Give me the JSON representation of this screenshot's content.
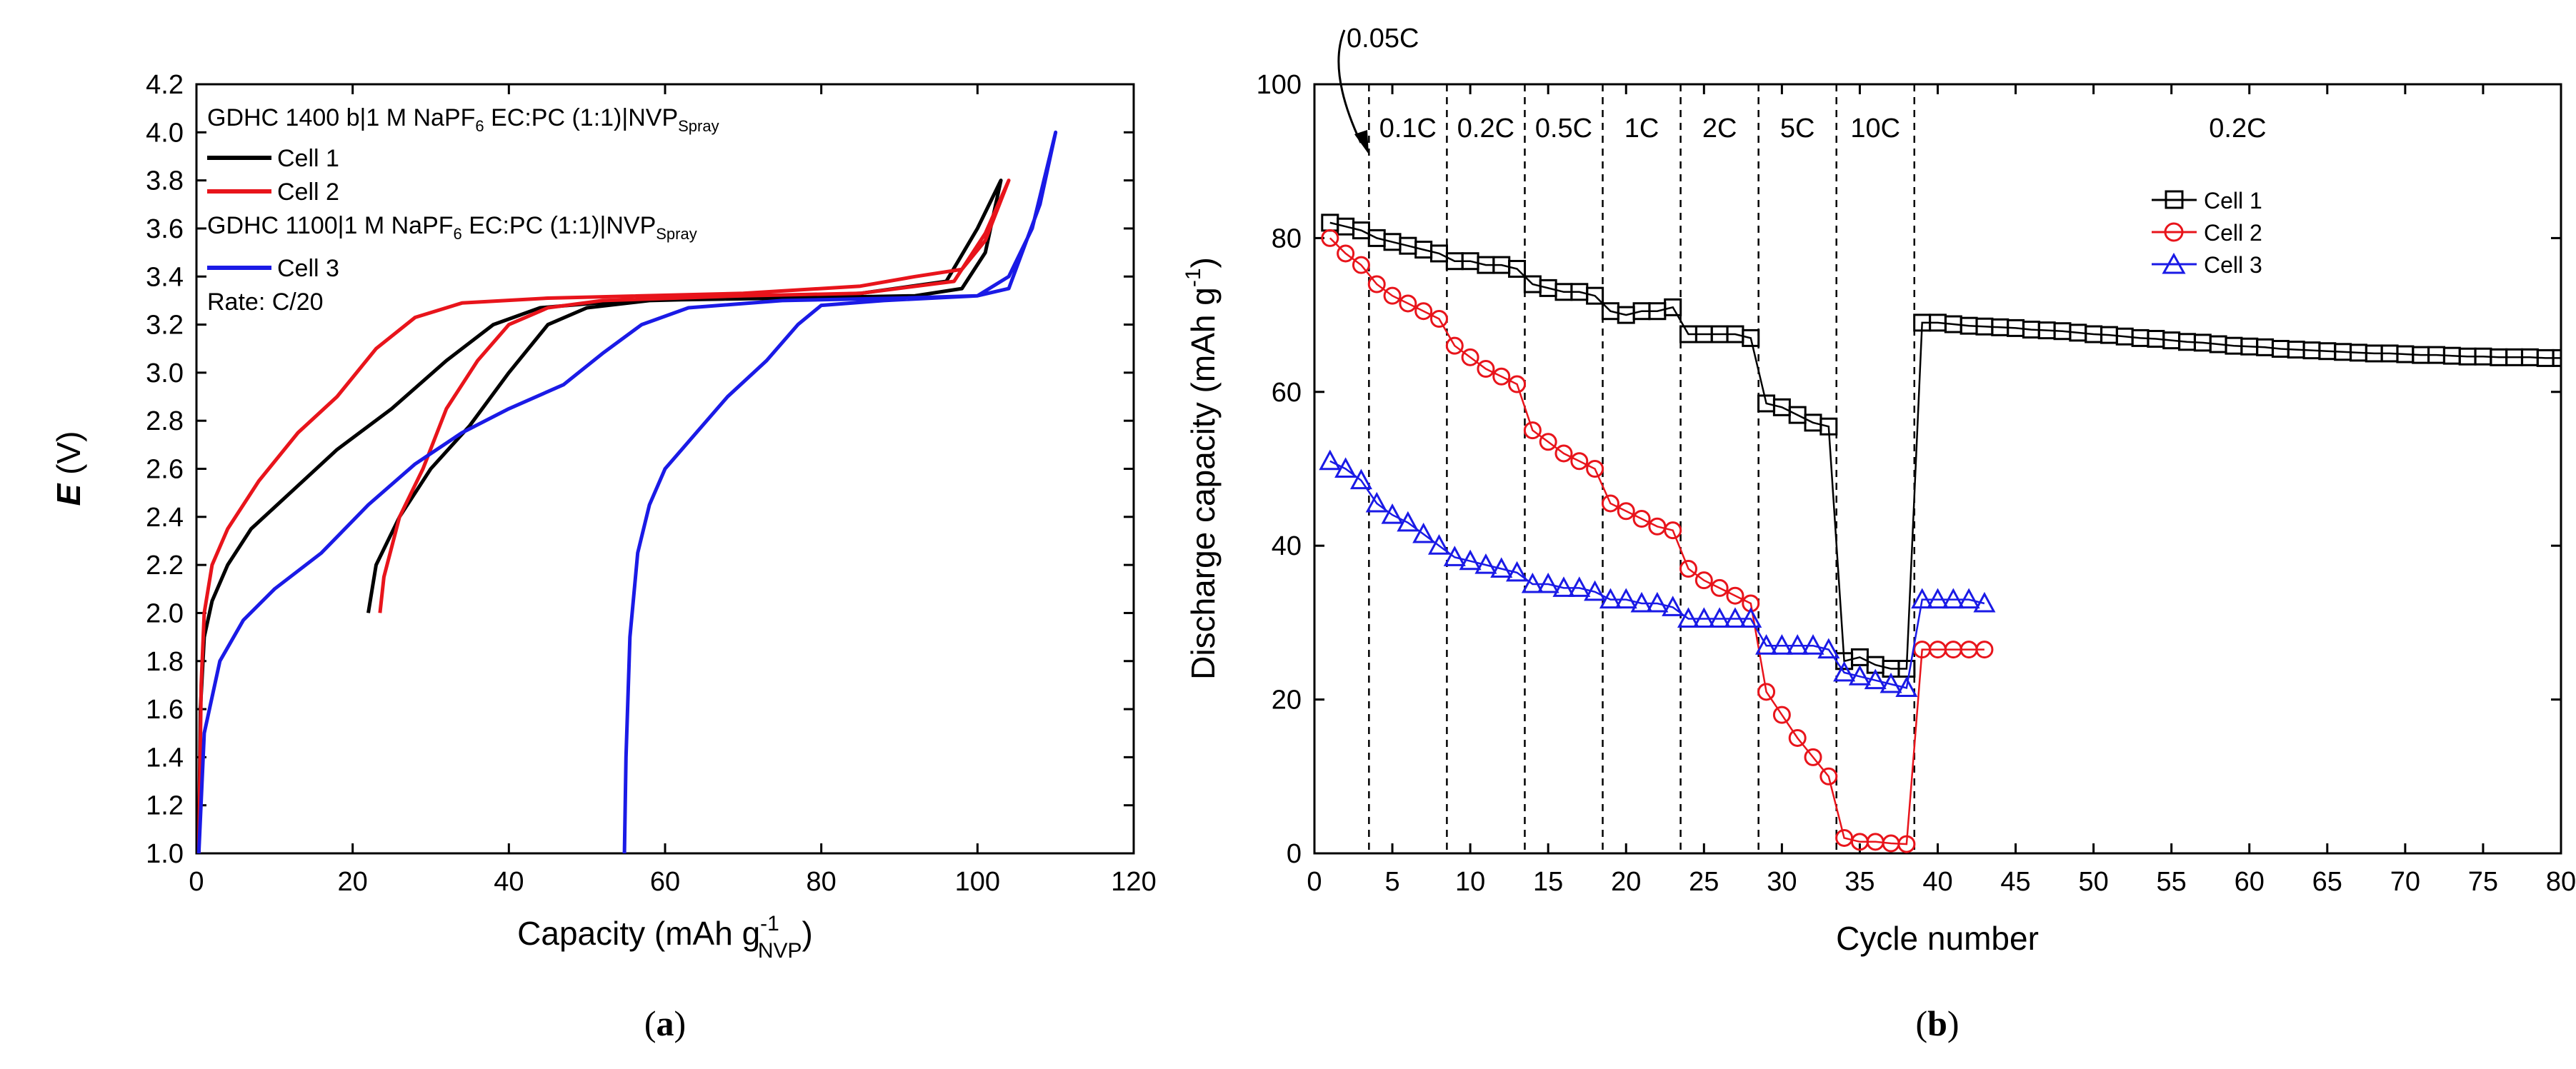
{
  "panel_a": {
    "caption_open": "(",
    "caption_letter": "a",
    "caption_close": ")",
    "ylabel": "E",
    "ylabel_unit": " (V)",
    "xlabel_main": "Capacity (mAh g",
    "xlabel_sup": "-1",
    "xlabel_sub": "NVP",
    "xlabel_close": ")",
    "legend": {
      "group1_title": "GDHC 1400 b|1 M NaPF",
      "group1_sub6": "6",
      "group1_mid": " EC:PC (1:1)|NVP",
      "group1_subspray": "Spray",
      "cell1": "Cell 1",
      "cell2": "Cell 2",
      "group2_title": "GDHC 1100|1 M NaPF",
      "group2_sub6": "6",
      "group2_mid": " EC:PC (1:1)|NVP",
      "group2_subspray": "Spray",
      "cell3": "Cell 3",
      "rate": "Rate: C/20"
    }
  },
  "panel_b": {
    "caption_open": "(",
    "caption_letter": "b",
    "caption_close": ")",
    "ylabel_main": "Discharge capacity (mAh g",
    "ylabel_sup": "-1",
    "ylabel_close": ")",
    "xlabel": "Cycle number",
    "annotation": "0.05C",
    "rate_labels": [
      "0.1C",
      "0.2C",
      "0.5C",
      "1C",
      "2C",
      "5C",
      "10C",
      "0.2C"
    ],
    "legend": [
      "Cell 1",
      "Cell 2",
      "Cell 3"
    ]
  },
  "chart_data": [
    {
      "type": "line",
      "xlim": [
        0,
        120
      ],
      "ylim": [
        1.0,
        4.2
      ],
      "xticks": [
        0,
        20,
        40,
        60,
        80,
        100,
        120
      ],
      "yticks": [
        "1.0",
        "1.2",
        "1.4",
        "1.6",
        "1.8",
        "2.0",
        "2.2",
        "2.4",
        "2.6",
        "2.8",
        "3.0",
        "3.2",
        "3.4",
        "3.6",
        "3.8",
        "4.0",
        "4.2"
      ],
      "grid": false,
      "legend_position": "top-left",
      "series": [
        {
          "name": "Cell 1",
          "color": "#000000",
          "points": [
            [
              0.3,
              1.0
            ],
            [
              0.5,
              1.6
            ],
            [
              1,
              1.9
            ],
            [
              2,
              2.05
            ],
            [
              4,
              2.2
            ],
            [
              7,
              2.35
            ],
            [
              12,
              2.5
            ],
            [
              18,
              2.68
            ],
            [
              25,
              2.85
            ],
            [
              32,
              3.05
            ],
            [
              38,
              3.2
            ],
            [
              44,
              3.27
            ],
            [
              55,
              3.3
            ],
            [
              75,
              3.31
            ],
            [
              92,
              3.32
            ],
            [
              98,
              3.35
            ],
            [
              101,
              3.5
            ],
            [
              103,
              3.8
            ],
            [
              100,
              3.6
            ],
            [
              96,
              3.38
            ],
            [
              85,
              3.33
            ],
            [
              70,
              3.31
            ],
            [
              58,
              3.3
            ],
            [
              50,
              3.27
            ],
            [
              45,
              3.2
            ],
            [
              40,
              3.0
            ],
            [
              35,
              2.78
            ],
            [
              30,
              2.6
            ],
            [
              26,
              2.4
            ],
            [
              23,
              2.2
            ],
            [
              22,
              2.0
            ]
          ]
        },
        {
          "name": "Cell 2",
          "color": "#e8141b",
          "points": [
            [
              0.3,
              1.0
            ],
            [
              0.6,
              1.7
            ],
            [
              1,
              2.0
            ],
            [
              2,
              2.2
            ],
            [
              4,
              2.35
            ],
            [
              8,
              2.55
            ],
            [
              13,
              2.75
            ],
            [
              18,
              2.9
            ],
            [
              23,
              3.1
            ],
            [
              28,
              3.23
            ],
            [
              34,
              3.29
            ],
            [
              45,
              3.31
            ],
            [
              70,
              3.33
            ],
            [
              85,
              3.36
            ],
            [
              92,
              3.4
            ],
            [
              98,
              3.43
            ],
            [
              101,
              3.55
            ],
            [
              104,
              3.8
            ],
            [
              101,
              3.58
            ],
            [
              97,
              3.38
            ],
            [
              85,
              3.33
            ],
            [
              70,
              3.32
            ],
            [
              52,
              3.3
            ],
            [
              45,
              3.27
            ],
            [
              40,
              3.2
            ],
            [
              36,
              3.05
            ],
            [
              32,
              2.85
            ],
            [
              29,
              2.6
            ],
            [
              26,
              2.4
            ],
            [
              24,
              2.15
            ],
            [
              23.5,
              2.0
            ]
          ]
        },
        {
          "name": "Cell 3",
          "color": "#1a1ae6",
          "points": [
            [
              0.3,
              1.0
            ],
            [
              1,
              1.5
            ],
            [
              3,
              1.8
            ],
            [
              6,
              1.97
            ],
            [
              10,
              2.1
            ],
            [
              16,
              2.25
            ],
            [
              22,
              2.45
            ],
            [
              28,
              2.62
            ],
            [
              34,
              2.75
            ],
            [
              40,
              2.85
            ],
            [
              47,
              2.95
            ],
            [
              52,
              3.08
            ],
            [
              57,
              3.2
            ],
            [
              63,
              3.27
            ],
            [
              75,
              3.3
            ],
            [
              90,
              3.31
            ],
            [
              100,
              3.32
            ],
            [
              104,
              3.4
            ],
            [
              107,
              3.6
            ],
            [
              110,
              4.0
            ],
            [
              108,
              3.7
            ],
            [
              104,
              3.35
            ],
            [
              100,
              3.32
            ],
            [
              88,
              3.3
            ],
            [
              80,
              3.28
            ],
            [
              77,
              3.2
            ],
            [
              73,
              3.05
            ],
            [
              68,
              2.9
            ],
            [
              64,
              2.75
            ],
            [
              60,
              2.6
            ],
            [
              58,
              2.45
            ],
            [
              56.5,
              2.25
            ],
            [
              55.5,
              1.9
            ],
            [
              55,
              1.4
            ],
            [
              54.8,
              1.0
            ]
          ]
        }
      ]
    },
    {
      "type": "scatter",
      "xlim": [
        0,
        80
      ],
      "ylim": [
        0,
        100
      ],
      "xticks": [
        0,
        5,
        10,
        15,
        20,
        25,
        30,
        35,
        40,
        45,
        50,
        55,
        60,
        65,
        70,
        75,
        80
      ],
      "yticks": [
        0,
        20,
        40,
        60,
        80,
        100
      ],
      "grid": false,
      "legend_position": "top-right",
      "rate_boundaries": [
        3.5,
        8.5,
        13.5,
        18.5,
        23.5,
        28.5,
        33.5,
        38.5
      ],
      "series": [
        {
          "name": "Cell 1",
          "marker": "square",
          "color": "#000000",
          "x": [
            1,
            2,
            3,
            4,
            5,
            6,
            7,
            8,
            9,
            10,
            11,
            12,
            13,
            14,
            15,
            16,
            17,
            18,
            19,
            20,
            21,
            22,
            23,
            24,
            25,
            26,
            27,
            28,
            29,
            30,
            31,
            32,
            33,
            34,
            35,
            36,
            37,
            38,
            39,
            40,
            41,
            42,
            43,
            44,
            45,
            46,
            47,
            48,
            49,
            50,
            51,
            52,
            53,
            54,
            55,
            56,
            57,
            58,
            59,
            60,
            61,
            62,
            63,
            64,
            65,
            66,
            67,
            68,
            69,
            70,
            71,
            72,
            73,
            74,
            75,
            76,
            77,
            78,
            79,
            80
          ],
          "y": [
            82,
            81.5,
            81,
            80,
            79.5,
            79,
            78.5,
            78,
            77,
            77,
            76.5,
            76.5,
            76,
            74,
            73.5,
            73,
            73,
            72.5,
            70.5,
            70,
            70.5,
            70.5,
            71,
            67.5,
            67.5,
            67.5,
            67.5,
            67,
            58.5,
            58,
            57,
            56,
            55.5,
            25,
            25.5,
            24.5,
            24,
            24,
            69,
            69,
            68.8,
            68.6,
            68.5,
            68.4,
            68.3,
            68.1,
            68,
            67.9,
            67.7,
            67.5,
            67.4,
            67.2,
            67,
            66.9,
            66.7,
            66.5,
            66.4,
            66.2,
            66,
            65.9,
            65.8,
            65.6,
            65.5,
            65.4,
            65.3,
            65.2,
            65.1,
            65,
            65,
            64.9,
            64.8,
            64.8,
            64.7,
            64.6,
            64.6,
            64.5,
            64.5,
            64.5,
            64.4,
            64.4
          ]
        },
        {
          "name": "Cell 2",
          "marker": "circle",
          "color": "#e8141b",
          "x": [
            1,
            2,
            3,
            4,
            5,
            6,
            7,
            8,
            9,
            10,
            11,
            12,
            13,
            14,
            15,
            16,
            17,
            18,
            19,
            20,
            21,
            22,
            23,
            24,
            25,
            26,
            27,
            28,
            29,
            30,
            31,
            32,
            33,
            34,
            35,
            36,
            37,
            38,
            39,
            40,
            41,
            42,
            43
          ],
          "y": [
            80,
            78,
            76.5,
            74,
            72.5,
            71.5,
            70.5,
            69.5,
            66,
            64.5,
            63,
            62,
            61,
            55,
            53.5,
            52,
            51,
            50,
            45.5,
            44.5,
            43.5,
            42.5,
            42,
            37,
            35.5,
            34.5,
            33.5,
            32.5,
            21,
            18,
            15,
            12.5,
            10,
            2,
            1.5,
            1.5,
            1.3,
            1.2,
            26.5,
            26.5,
            26.5,
            26.5,
            26.5
          ]
        },
        {
          "name": "Cell 3",
          "marker": "triangle",
          "color": "#1a1ae6",
          "x": [
            1,
            2,
            3,
            4,
            5,
            6,
            7,
            8,
            9,
            10,
            11,
            12,
            13,
            14,
            15,
            16,
            17,
            18,
            19,
            20,
            21,
            22,
            23,
            24,
            25,
            26,
            27,
            28,
            29,
            30,
            31,
            32,
            33,
            34,
            35,
            36,
            37,
            38,
            39,
            40,
            41,
            42,
            43
          ],
          "y": [
            51,
            50,
            48.5,
            45.5,
            44,
            43,
            41.5,
            40,
            38.5,
            38,
            37.5,
            37,
            36.5,
            35,
            35,
            34.5,
            34.5,
            34,
            33,
            33,
            32.5,
            32.5,
            32,
            30.5,
            30.5,
            30.5,
            30.5,
            30.5,
            27,
            27,
            27,
            27,
            26.5,
            23.5,
            23,
            22.5,
            22,
            21.5,
            33,
            33,
            33,
            33,
            32.5
          ]
        }
      ]
    }
  ]
}
